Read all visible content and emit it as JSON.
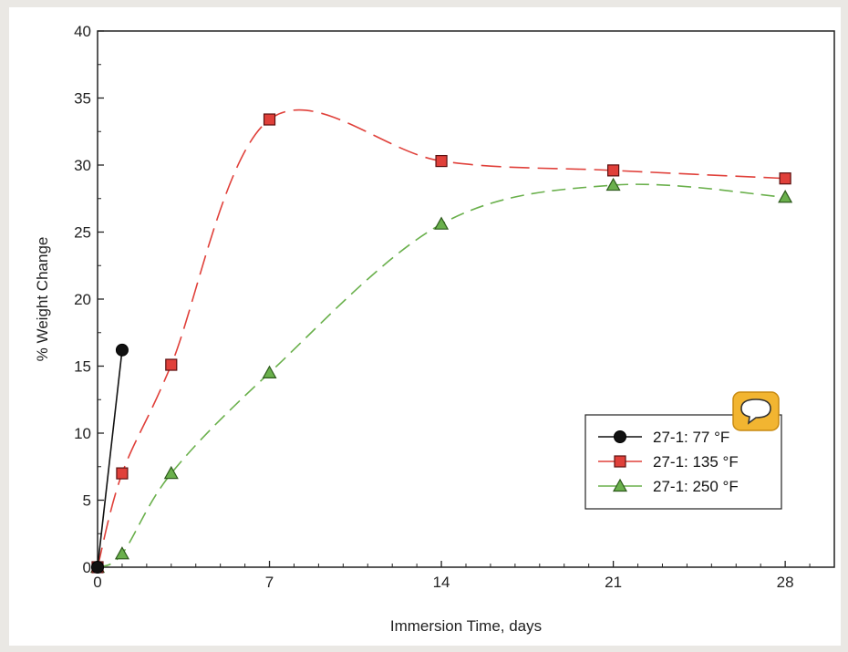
{
  "chart_data": {
    "type": "line",
    "title": "",
    "xlabel": "Immersion Time, days",
    "ylabel": "% Weight Change",
    "xlim": [
      0,
      30
    ],
    "ylim": [
      0,
      40
    ],
    "x_ticks": [
      0,
      7,
      14,
      21,
      28
    ],
    "y_ticks": [
      0,
      5,
      10,
      15,
      20,
      25,
      30,
      35,
      40
    ],
    "grid": false,
    "legend_position": "lower-right",
    "series": [
      {
        "name": "27-1: 77 °F",
        "legend_label": "27-1:  77 °F",
        "marker": "circle",
        "color": "#111111",
        "line_style": "solid",
        "x": [
          0,
          1
        ],
        "y": [
          0,
          16.2
        ]
      },
      {
        "name": "27-1: 135 °F",
        "legend_label": "27-1:  135 °F",
        "marker": "square",
        "color": "#e0403a",
        "line_style": "long-dash",
        "x": [
          0,
          1,
          3,
          7,
          14,
          21,
          28
        ],
        "y": [
          0,
          7.0,
          15.1,
          33.4,
          30.3,
          29.6,
          29.0
        ]
      },
      {
        "name": "27-1: 250 °F",
        "legend_label": "27-1:  250 °F",
        "marker": "triangle",
        "color": "#6ab04c",
        "line_style": "dash",
        "x": [
          0,
          1,
          3,
          7,
          14,
          21,
          28
        ],
        "y": [
          0,
          1.0,
          7.0,
          14.5,
          25.6,
          28.5,
          27.6
        ]
      }
    ]
  },
  "overlay": {
    "icon": "speech-bubble-icon",
    "color": "#f2b531"
  }
}
